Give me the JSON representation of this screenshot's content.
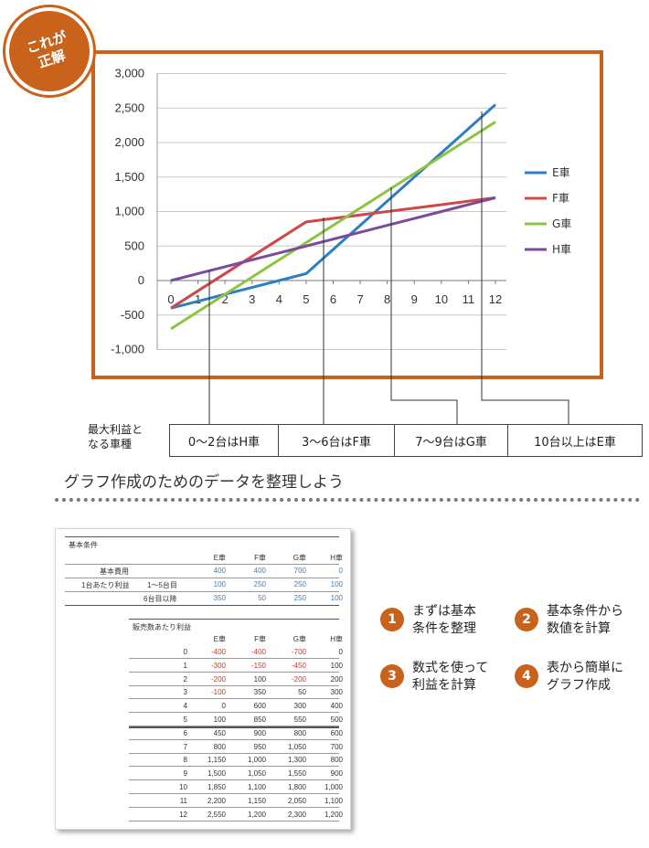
{
  "badge": {
    "line1": "これが",
    "line2": "正解"
  },
  "chart_data": {
    "type": "line",
    "x": [
      0,
      1,
      2,
      3,
      4,
      5,
      6,
      7,
      8,
      9,
      10,
      11,
      12
    ],
    "xticks": [
      "0",
      "1",
      "2",
      "3",
      "4",
      "5",
      "6",
      "7",
      "8",
      "9",
      "10",
      "11",
      "12"
    ],
    "yticks": [
      "3,000",
      "2,500",
      "2,000",
      "1,500",
      "1,000",
      "500",
      "0",
      "-500",
      "-1,000"
    ],
    "ylim": [
      -1000,
      3000
    ],
    "grid": true,
    "legend_position": "right",
    "series": [
      {
        "name": "E車",
        "color": "#2e7fc1",
        "values": [
          -400,
          -300,
          -200,
          -100,
          0,
          100,
          450,
          800,
          1150,
          1500,
          1850,
          2200,
          2550
        ]
      },
      {
        "name": "F車",
        "color": "#d04747",
        "values": [
          -400,
          -150,
          100,
          350,
          600,
          850,
          900,
          950,
          1000,
          1050,
          1100,
          1150,
          1200
        ]
      },
      {
        "name": "G車",
        "color": "#8cc43f",
        "values": [
          -700,
          -450,
          -200,
          50,
          300,
          550,
          800,
          1050,
          1300,
          1550,
          1800,
          2050,
          2300
        ]
      },
      {
        "name": "H車",
        "color": "#7a4b9c",
        "values": [
          0,
          100,
          200,
          300,
          400,
          500,
          600,
          700,
          800,
          900,
          1000,
          1100,
          1200
        ]
      }
    ]
  },
  "best": {
    "label_line1": "最大利益と",
    "label_line2": "なる車種",
    "cells": [
      "0～2台はH車",
      "3～6台はF車",
      "7～9台はG車",
      "10台以上はE車"
    ]
  },
  "caption": "グラフ作成のためのデータを整理しよう",
  "sheet": {
    "title": "基本条件",
    "cond_headers": [
      "E車",
      "F車",
      "G車",
      "H車"
    ],
    "cond_rows": [
      {
        "label": "基本費用",
        "sub": "",
        "values": [
          "400",
          "400",
          "700",
          "0"
        ]
      },
      {
        "label": "1台あたり利益",
        "sub": "1～5台目",
        "values": [
          "100",
          "250",
          "250",
          "100"
        ]
      },
      {
        "label": "",
        "sub": "6台目以降",
        "values": [
          "350",
          "50",
          "250",
          "100"
        ]
      }
    ],
    "profit_title": "販売数あたり利益",
    "profit_headers": [
      "E車",
      "F車",
      "G車",
      "H車"
    ],
    "profit_rows": [
      [
        "0",
        "-400",
        "-400",
        "-700",
        "0"
      ],
      [
        "1",
        "-300",
        "-150",
        "-450",
        "100"
      ],
      [
        "2",
        "-200",
        "100",
        "-200",
        "200"
      ],
      [
        "3",
        "-100",
        "350",
        "50",
        "300"
      ],
      [
        "4",
        "0",
        "600",
        "300",
        "400"
      ],
      [
        "5",
        "100",
        "850",
        "550",
        "500"
      ],
      [
        "6",
        "450",
        "900",
        "800",
        "600"
      ],
      [
        "7",
        "800",
        "950",
        "1,050",
        "700"
      ],
      [
        "8",
        "1,150",
        "1,000",
        "1,300",
        "800"
      ],
      [
        "9",
        "1,500",
        "1,050",
        "1,550",
        "900"
      ],
      [
        "10",
        "1,850",
        "1,100",
        "1,800",
        "1,000"
      ],
      [
        "11",
        "2,200",
        "1,150",
        "2,050",
        "1,100"
      ],
      [
        "12",
        "2,550",
        "1,200",
        "2,300",
        "1,200"
      ]
    ]
  },
  "steps": [
    {
      "num": "1",
      "text": "まずは基本\n条件を整理"
    },
    {
      "num": "2",
      "text": "基本条件から\n数値を計算"
    },
    {
      "num": "3",
      "text": "数式を使って\n利益を計算"
    },
    {
      "num": "4",
      "text": "表から簡単に\nグラフ作成"
    }
  ]
}
